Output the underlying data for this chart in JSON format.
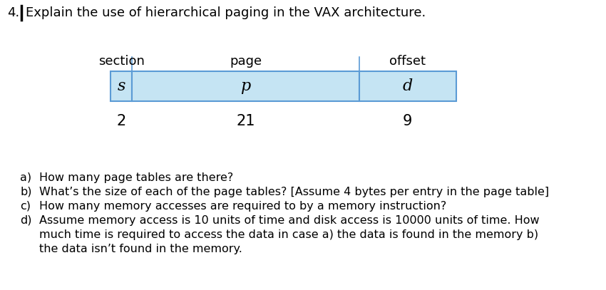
{
  "title_number": "4.",
  "title_text": "Explain the use of hierarchical paging in the VAX architecture.",
  "header_labels": [
    "section",
    "page",
    "offset"
  ],
  "cell_letters": [
    "s",
    "p",
    "d"
  ],
  "cell_numbers": [
    "2",
    "21",
    "9"
  ],
  "col_bits": [
    2,
    21,
    9
  ],
  "box_facecolor": "#C5E4F3",
  "box_edgecolor": "#5B9BD5",
  "bg_color": "#ffffff",
  "title_fontsize": 13,
  "header_fontsize": 13,
  "cell_fontsize": 13,
  "number_fontsize": 13,
  "question_fontsize": 11.5,
  "question_lines": [
    [
      "a)",
      "How many page tables are there?"
    ],
    [
      "b)",
      "What’s the size of each of the page tables? [Assume 4 bytes per entry in the page table]"
    ],
    [
      "c)",
      "How many memory accesses are required to by a memory instruction?"
    ],
    [
      "d)",
      "Assume memory access is 10 units of time and disk access is 10000 units of time. How"
    ],
    [
      "",
      "much time is required to access the data in case a) the data is found in the memory b)"
    ],
    [
      "",
      "the data isn’t found in the memory."
    ]
  ]
}
